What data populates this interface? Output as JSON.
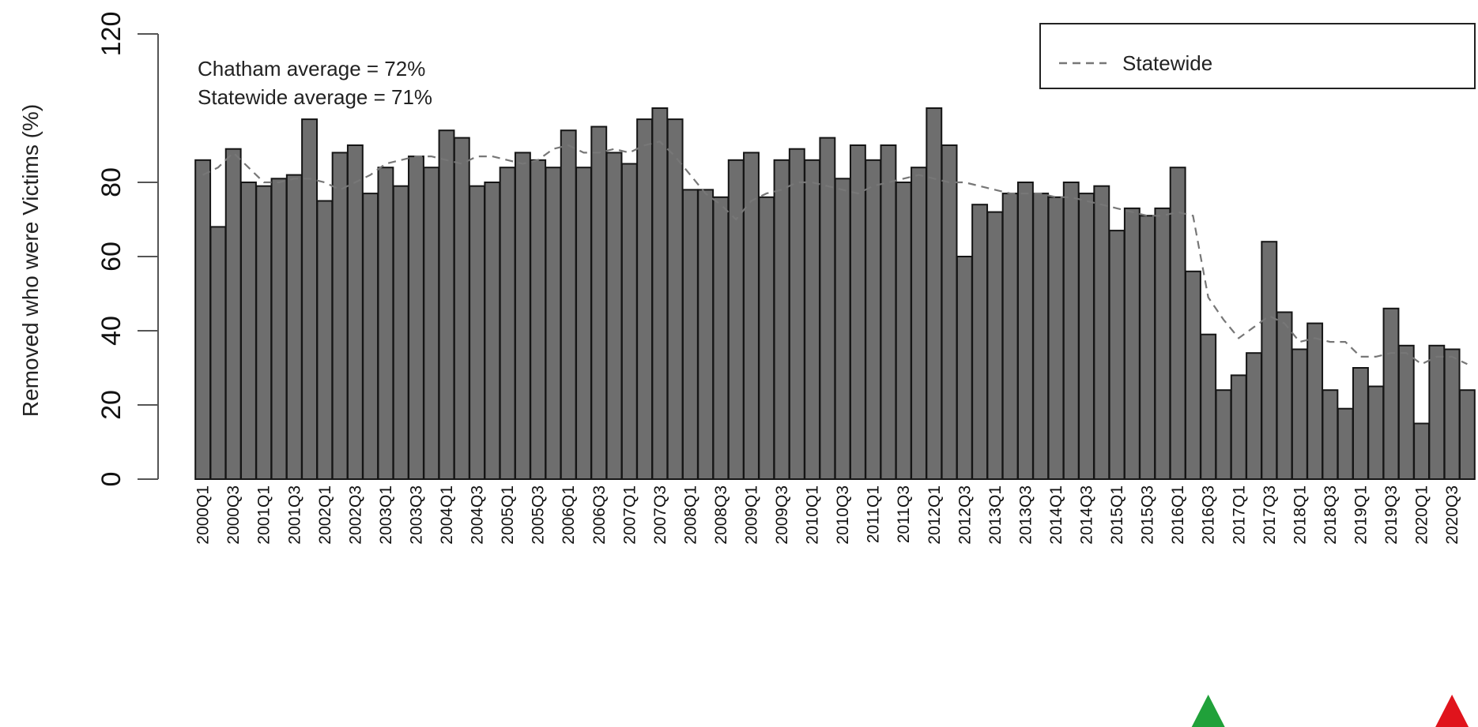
{
  "chart_data": {
    "type": "bar",
    "ylabel": "Removed who were Victims (%)",
    "ylim": [
      0,
      120
    ],
    "yticks": [
      0,
      20,
      40,
      60,
      80,
      120
    ],
    "annotations": [
      "Chatham average = 72%",
      "Statewide average = 71%"
    ],
    "legend": {
      "position": "top-right",
      "entries": [
        {
          "label": "Statewide",
          "style": "dashed"
        }
      ]
    },
    "xtick_labels": [
      "2000Q1",
      "2000Q3",
      "2001Q1",
      "2001Q3",
      "2002Q1",
      "2002Q3",
      "2003Q1",
      "2003Q3",
      "2004Q1",
      "2004Q3",
      "2005Q1",
      "2005Q3",
      "2006Q1",
      "2006Q3",
      "2007Q1",
      "2007Q3",
      "2008Q1",
      "2008Q3",
      "2009Q1",
      "2009Q3",
      "2010Q1",
      "2010Q3",
      "2011Q1",
      "2011Q3",
      "2012Q1",
      "2012Q3",
      "2013Q1",
      "2013Q3",
      "2014Q1",
      "2014Q3",
      "2015Q1",
      "2015Q3",
      "2016Q1",
      "2016Q3",
      "2017Q1",
      "2017Q3",
      "2018Q1",
      "2018Q3",
      "2019Q1",
      "2019Q3",
      "2020Q1",
      "2020Q3"
    ],
    "series": [
      {
        "values": [
          86,
          68,
          89,
          80,
          79,
          81,
          82,
          97,
          75,
          88,
          90,
          77,
          84,
          79,
          87,
          84,
          94,
          92,
          79,
          80,
          84,
          88,
          86,
          84,
          94,
          84,
          95,
          88,
          85,
          97,
          100,
          97,
          78,
          78,
          76,
          86,
          88,
          76,
          86,
          89,
          86,
          92,
          81,
          90,
          86,
          90,
          80,
          84,
          100,
          90,
          60,
          74,
          72,
          77,
          80,
          77,
          76,
          80,
          77,
          79,
          67,
          73,
          71,
          73,
          84,
          56,
          39,
          24,
          28,
          34,
          64,
          45,
          35,
          42,
          24,
          19,
          30,
          25,
          46,
          36,
          15,
          36,
          35,
          24
        ],
        "color": "#6e6e6e"
      },
      {
        "name": "Statewide",
        "style": "dashed",
        "values": [
          82,
          84,
          88,
          84,
          80,
          80,
          81,
          81,
          80,
          78,
          80,
          82,
          85,
          86,
          87,
          87,
          86,
          85,
          87,
          87,
          86,
          85,
          86,
          89,
          90,
          88,
          88,
          89,
          88,
          90,
          91,
          87,
          82,
          77,
          74,
          70,
          75,
          77,
          78,
          80,
          80,
          79,
          78,
          77,
          79,
          80,
          81,
          82,
          81,
          80,
          80,
          79,
          78,
          77,
          77,
          77,
          76,
          76,
          75,
          74,
          73,
          72,
          71,
          71,
          72,
          71,
          49,
          43,
          38,
          41,
          44,
          42,
          37,
          38,
          37,
          37,
          33,
          33,
          34,
          34,
          31,
          33,
          33,
          31
        ]
      }
    ],
    "markers": [
      {
        "label": "2016Q3",
        "color": "#20a13a"
      },
      {
        "label": "2020Q3",
        "color": "#e0141c"
      }
    ]
  }
}
